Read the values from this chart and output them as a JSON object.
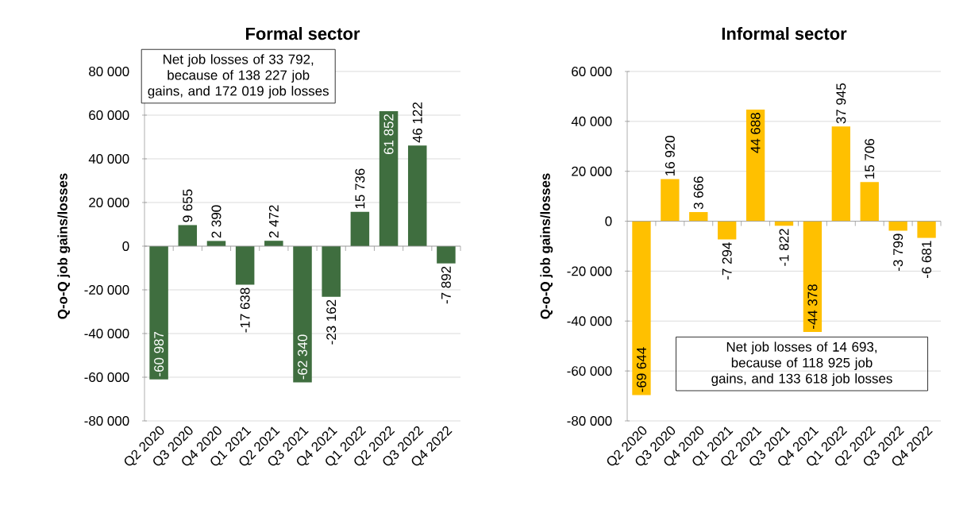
{
  "chart_data": [
    {
      "type": "bar",
      "title": "Formal sector",
      "ylabel": "Q-o-Q job gains/losses",
      "categories": [
        "Q2 2020",
        "Q3 2020",
        "Q4 2020",
        "Q1 2021",
        "Q2 2021",
        "Q3 2021",
        "Q4 2021",
        "Q1 2022",
        "Q2 2022",
        "Q3 2022",
        "Q4 2022"
      ],
      "values": [
        -60987,
        9655,
        2390,
        -17638,
        2472,
        -62340,
        -23162,
        15736,
        61852,
        46122,
        -7892
      ],
      "value_labels": [
        "-60 987",
        "9 655",
        "2 390",
        "-17 638",
        "2 472",
        "-62 340",
        "-23 162",
        "15 736",
        "61 852",
        "46 122",
        "-7 892"
      ],
      "color": "#3f6e3f",
      "ylim": [
        -80000,
        80000
      ],
      "yticks": [
        {
          "value": -80000,
          "label": "-80 000"
        },
        {
          "value": -60000,
          "label": "-60 000"
        },
        {
          "value": -40000,
          "label": "-40 000"
        },
        {
          "value": -20000,
          "label": "-20 000"
        },
        {
          "value": 0,
          "label": "0"
        },
        {
          "value": 20000,
          "label": "20 000"
        },
        {
          "value": 40000,
          "label": "40 000"
        },
        {
          "value": 60000,
          "label": "60 000"
        },
        {
          "value": 80000,
          "label": "80 000"
        }
      ],
      "grid": "y",
      "annotations": [
        "Net job losses of 33 792, because of 138 227 job gains, and 172 019 job losses"
      ]
    },
    {
      "type": "bar",
      "title": "Informal sector",
      "ylabel": "Q-o-Q job gains/losses",
      "categories": [
        "Q2 2020",
        "Q3 2020",
        "Q4 2020",
        "Q1 2021",
        "Q2 2021",
        "Q3 2021",
        "Q4 2021",
        "Q1 2022",
        "Q2 2022",
        "Q3 2022",
        "Q4 2022"
      ],
      "values": [
        -69644,
        16920,
        3666,
        -7294,
        44688,
        -1822,
        -44378,
        37945,
        15706,
        -3799,
        -6681
      ],
      "value_labels": [
        "-69 644",
        "16 920",
        "3 666",
        "-7 294",
        "44 688",
        "-1 822",
        "-44 378",
        "37 945",
        "15 706",
        "-3 799",
        "-6 681"
      ],
      "color": "#ffc000",
      "ylim": [
        -80000,
        60000
      ],
      "yticks": [
        {
          "value": -80000,
          "label": "-80 000"
        },
        {
          "value": -60000,
          "label": "-60 000"
        },
        {
          "value": -40000,
          "label": "-40 000"
        },
        {
          "value": -20000,
          "label": "-20 000"
        },
        {
          "value": 0,
          "label": "0"
        },
        {
          "value": 20000,
          "label": "20 000"
        },
        {
          "value": 40000,
          "label": "40 000"
        },
        {
          "value": 60000,
          "label": "60 000"
        }
      ],
      "grid": "y",
      "annotations": [
        "Net job losses of 14 693, because of 118 925 job gains, and 133 618 job losses"
      ]
    }
  ]
}
